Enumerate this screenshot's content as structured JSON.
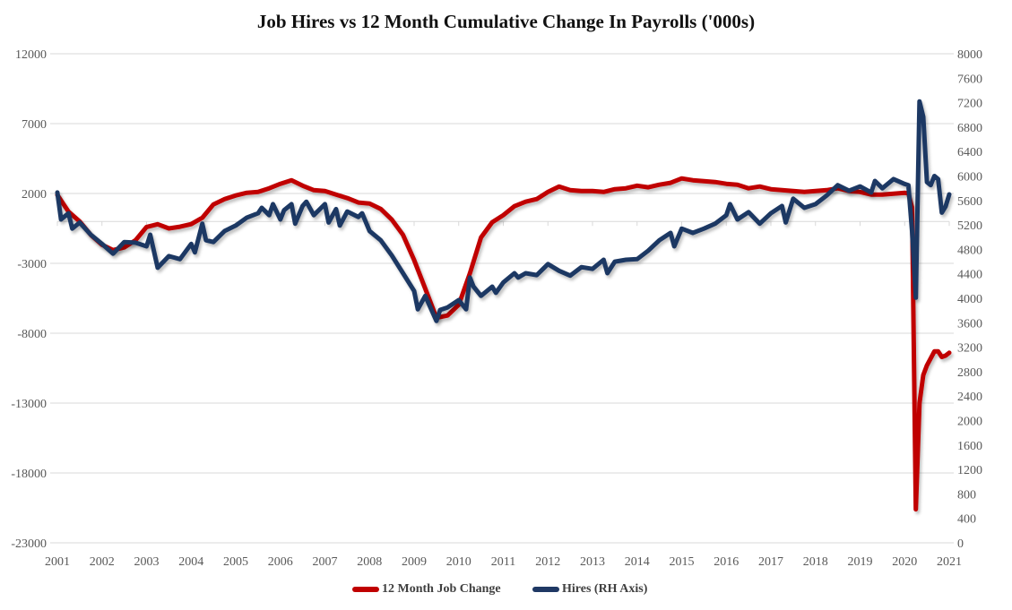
{
  "chart_data": {
    "type": "line",
    "title": "Job Hires vs 12 Month Cumulative Change In Payrolls ('000s)",
    "xlabel": "",
    "ylabel": "",
    "x_ticks": [
      "2001",
      "2002",
      "2003",
      "2004",
      "2005",
      "2006",
      "2007",
      "2008",
      "2009",
      "2010",
      "2011",
      "2012",
      "2013",
      "2014",
      "2015",
      "2016",
      "2017",
      "2018",
      "2019",
      "2020",
      "2021"
    ],
    "xlim": [
      "2001-01",
      "2021-01"
    ],
    "ylim_left": [
      -23000,
      12000
    ],
    "y_ticks_left": [
      "12000",
      "7000",
      "2000",
      "-3000",
      "-8000",
      "-13000",
      "-18000",
      "-23000"
    ],
    "ylim_right": [
      0,
      8000
    ],
    "y_ticks_right": [
      "8000",
      "7600",
      "7200",
      "6800",
      "6400",
      "6000",
      "5600",
      "5200",
      "4800",
      "4400",
      "4000",
      "3600",
      "3200",
      "2800",
      "2400",
      "2000",
      "1600",
      "1200",
      "800",
      "400",
      "0"
    ],
    "grid": "horizontal",
    "legend_position": "bottom",
    "series": [
      {
        "name": "12 Month Job Change",
        "axis": "left",
        "color": "#C00000",
        "points": [
          [
            "2001-01",
            1900
          ],
          [
            "2001-04",
            700
          ],
          [
            "2001-07",
            0
          ],
          [
            "2001-10",
            -960
          ],
          [
            "2002-01",
            -1670
          ],
          [
            "2002-04",
            -2050
          ],
          [
            "2002-07",
            -1860
          ],
          [
            "2002-10",
            -1350
          ],
          [
            "2003-01",
            -400
          ],
          [
            "2003-04",
            -200
          ],
          [
            "2003-07",
            -500
          ],
          [
            "2003-10",
            -380
          ],
          [
            "2004-01",
            -190
          ],
          [
            "2004-04",
            260
          ],
          [
            "2004-07",
            1220
          ],
          [
            "2004-10",
            1600
          ],
          [
            "2005-01",
            1860
          ],
          [
            "2005-04",
            2050
          ],
          [
            "2005-07",
            2110
          ],
          [
            "2005-10",
            2370
          ],
          [
            "2006-01",
            2690
          ],
          [
            "2006-04",
            2950
          ],
          [
            "2006-07",
            2560
          ],
          [
            "2006-10",
            2240
          ],
          [
            "2007-01",
            2180
          ],
          [
            "2007-04",
            1920
          ],
          [
            "2007-07",
            1670
          ],
          [
            "2007-10",
            1350
          ],
          [
            "2008-01",
            1280
          ],
          [
            "2008-04",
            900
          ],
          [
            "2008-07",
            130
          ],
          [
            "2008-10",
            -960
          ],
          [
            "2009-01",
            -2760
          ],
          [
            "2009-04",
            -4810
          ],
          [
            "2009-07",
            -6900
          ],
          [
            "2009-10",
            -6730
          ],
          [
            "2010-01",
            -5960
          ],
          [
            "2010-04",
            -3720
          ],
          [
            "2010-07",
            -1150
          ],
          [
            "2010-10",
            -60
          ],
          [
            "2011-01",
            450
          ],
          [
            "2011-04",
            1090
          ],
          [
            "2011-07",
            1410
          ],
          [
            "2011-10",
            1600
          ],
          [
            "2012-01",
            2110
          ],
          [
            "2012-04",
            2500
          ],
          [
            "2012-07",
            2240
          ],
          [
            "2012-10",
            2180
          ],
          [
            "2013-01",
            2180
          ],
          [
            "2013-04",
            2110
          ],
          [
            "2013-07",
            2310
          ],
          [
            "2013-10",
            2370
          ],
          [
            "2014-01",
            2560
          ],
          [
            "2014-04",
            2440
          ],
          [
            "2014-07",
            2630
          ],
          [
            "2014-10",
            2760
          ],
          [
            "2015-01",
            3080
          ],
          [
            "2015-04",
            2950
          ],
          [
            "2015-07",
            2880
          ],
          [
            "2015-10",
            2820
          ],
          [
            "2016-01",
            2690
          ],
          [
            "2016-04",
            2630
          ],
          [
            "2016-07",
            2370
          ],
          [
            "2016-10",
            2500
          ],
          [
            "2017-01",
            2310
          ],
          [
            "2017-04",
            2240
          ],
          [
            "2017-07",
            2180
          ],
          [
            "2017-10",
            2110
          ],
          [
            "2018-01",
            2180
          ],
          [
            "2018-04",
            2240
          ],
          [
            "2018-07",
            2370
          ],
          [
            "2018-10",
            2180
          ],
          [
            "2019-01",
            2110
          ],
          [
            "2019-04",
            1920
          ],
          [
            "2019-07",
            1920
          ],
          [
            "2019-10",
            1990
          ],
          [
            "2020-01",
            2050
          ],
          [
            "2020-02",
            2000
          ],
          [
            "2020-03",
            1000
          ],
          [
            "2020-04",
            -20600
          ],
          [
            "2020-05",
            -13000
          ],
          [
            "2020-06",
            -11000
          ],
          [
            "2020-07",
            -10300
          ],
          [
            "2020-08",
            -9800
          ],
          [
            "2020-09",
            -9300
          ],
          [
            "2020-10",
            -9300
          ],
          [
            "2020-11",
            -9700
          ],
          [
            "2020-12",
            -9600
          ],
          [
            "2021-01",
            -9400
          ]
        ]
      },
      {
        "name": "Hires (RH Axis)",
        "axis": "right",
        "color": "#1F3864",
        "points": [
          [
            "2001-01",
            5730
          ],
          [
            "2001-02",
            5290
          ],
          [
            "2001-04",
            5390
          ],
          [
            "2001-05",
            5140
          ],
          [
            "2001-07",
            5240
          ],
          [
            "2001-10",
            5040
          ],
          [
            "2002-01",
            4890
          ],
          [
            "2002-04",
            4730
          ],
          [
            "2002-07",
            4920
          ],
          [
            "2002-10",
            4910
          ],
          [
            "2003-01",
            4850
          ],
          [
            "2003-02",
            5040
          ],
          [
            "2003-04",
            4500
          ],
          [
            "2003-07",
            4690
          ],
          [
            "2003-10",
            4640
          ],
          [
            "2004-01",
            4890
          ],
          [
            "2004-02",
            4750
          ],
          [
            "2004-04",
            5220
          ],
          [
            "2004-05",
            4950
          ],
          [
            "2004-07",
            4920
          ],
          [
            "2004-10",
            5100
          ],
          [
            "2005-01",
            5190
          ],
          [
            "2005-04",
            5320
          ],
          [
            "2005-07",
            5390
          ],
          [
            "2005-08",
            5480
          ],
          [
            "2005-10",
            5360
          ],
          [
            "2005-11",
            5540
          ],
          [
            "2006-01",
            5290
          ],
          [
            "2006-02",
            5440
          ],
          [
            "2006-04",
            5540
          ],
          [
            "2006-05",
            5220
          ],
          [
            "2006-07",
            5510
          ],
          [
            "2006-08",
            5580
          ],
          [
            "2006-10",
            5360
          ],
          [
            "2007-01",
            5540
          ],
          [
            "2007-02",
            5240
          ],
          [
            "2007-04",
            5460
          ],
          [
            "2007-05",
            5190
          ],
          [
            "2007-07",
            5420
          ],
          [
            "2007-10",
            5330
          ],
          [
            "2007-11",
            5390
          ],
          [
            "2008-01",
            5100
          ],
          [
            "2008-04",
            4950
          ],
          [
            "2008-07",
            4700
          ],
          [
            "2008-10",
            4410
          ],
          [
            "2009-01",
            4120
          ],
          [
            "2009-02",
            3820
          ],
          [
            "2009-04",
            4040
          ],
          [
            "2009-07",
            3630
          ],
          [
            "2009-08",
            3810
          ],
          [
            "2009-10",
            3850
          ],
          [
            "2010-01",
            3970
          ],
          [
            "2010-03",
            3820
          ],
          [
            "2010-04",
            4340
          ],
          [
            "2010-05",
            4190
          ],
          [
            "2010-07",
            4040
          ],
          [
            "2010-10",
            4190
          ],
          [
            "2010-11",
            4090
          ],
          [
            "2011-01",
            4260
          ],
          [
            "2011-04",
            4410
          ],
          [
            "2011-05",
            4340
          ],
          [
            "2011-07",
            4410
          ],
          [
            "2011-10",
            4380
          ],
          [
            "2012-01",
            4560
          ],
          [
            "2012-04",
            4450
          ],
          [
            "2012-07",
            4370
          ],
          [
            "2012-10",
            4510
          ],
          [
            "2013-01",
            4480
          ],
          [
            "2013-04",
            4630
          ],
          [
            "2013-05",
            4410
          ],
          [
            "2013-07",
            4600
          ],
          [
            "2013-10",
            4630
          ],
          [
            "2014-01",
            4640
          ],
          [
            "2014-04",
            4780
          ],
          [
            "2014-07",
            4950
          ],
          [
            "2014-10",
            5070
          ],
          [
            "2014-11",
            4850
          ],
          [
            "2015-01",
            5140
          ],
          [
            "2015-04",
            5070
          ],
          [
            "2015-07",
            5140
          ],
          [
            "2015-10",
            5220
          ],
          [
            "2016-01",
            5360
          ],
          [
            "2016-02",
            5540
          ],
          [
            "2016-04",
            5290
          ],
          [
            "2016-07",
            5410
          ],
          [
            "2016-10",
            5220
          ],
          [
            "2017-01",
            5390
          ],
          [
            "2017-04",
            5510
          ],
          [
            "2017-05",
            5240
          ],
          [
            "2017-07",
            5630
          ],
          [
            "2017-10",
            5480
          ],
          [
            "2018-01",
            5540
          ],
          [
            "2018-04",
            5680
          ],
          [
            "2018-07",
            5850
          ],
          [
            "2018-10",
            5760
          ],
          [
            "2019-01",
            5830
          ],
          [
            "2019-04",
            5730
          ],
          [
            "2019-05",
            5920
          ],
          [
            "2019-07",
            5800
          ],
          [
            "2019-10",
            5950
          ],
          [
            "2020-01",
            5870
          ],
          [
            "2020-02",
            5850
          ],
          [
            "2020-03",
            5100
          ],
          [
            "2020-04",
            4010
          ],
          [
            "2020-05",
            7220
          ],
          [
            "2020-06",
            6970
          ],
          [
            "2020-07",
            5900
          ],
          [
            "2020-08",
            5850
          ],
          [
            "2020-09",
            6000
          ],
          [
            "2020-10",
            5950
          ],
          [
            "2020-11",
            5400
          ],
          [
            "2020-12",
            5500
          ],
          [
            "2021-01",
            5700
          ]
        ]
      }
    ]
  }
}
